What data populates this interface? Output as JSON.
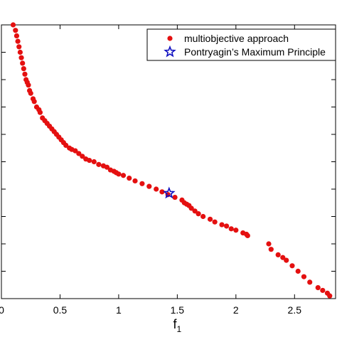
{
  "chart_data": {
    "type": "scatter",
    "title": "",
    "xlabel": "f",
    "xlabel_subscript": "1",
    "ylabel": "",
    "xlim": [
      0,
      2.85
    ],
    "ylim": [
      0,
      1.0
    ],
    "xticks": [
      0,
      0.5,
      1,
      1.5,
      2,
      2.5
    ],
    "xtick_labels": [
      "0",
      "0.5",
      "1",
      "1.5",
      "2",
      "2.5"
    ],
    "yticks": [
      0,
      0.1,
      0.2,
      0.3,
      0.4,
      0.5,
      0.6,
      0.7,
      0.8,
      0.9,
      1.0
    ],
    "ytick_labels": [],
    "grid": false,
    "legend_position": "top-right",
    "colors": {
      "series1": "#e41010",
      "series2": "#1010c0"
    },
    "series": [
      {
        "name": "multiobjective approach",
        "marker": "circle",
        "x": [
          0.1,
          0.12,
          0.13,
          0.14,
          0.15,
          0.16,
          0.17,
          0.18,
          0.19,
          0.2,
          0.21,
          0.22,
          0.23,
          0.24,
          0.25,
          0.27,
          0.28,
          0.3,
          0.32,
          0.33,
          0.35,
          0.37,
          0.39,
          0.41,
          0.43,
          0.45,
          0.47,
          0.49,
          0.51,
          0.53,
          0.55,
          0.58,
          0.6,
          0.63,
          0.66,
          0.69,
          0.72,
          0.75,
          0.79,
          0.83,
          0.87,
          0.9,
          0.93,
          0.96,
          0.98,
          1.0,
          1.04,
          1.09,
          1.14,
          1.2,
          1.26,
          1.32,
          1.37,
          1.42,
          1.48,
          1.54,
          1.56,
          1.58,
          1.6,
          1.62,
          1.65,
          1.68,
          1.72,
          1.78,
          1.82,
          1.88,
          1.92,
          1.96,
          2.0,
          2.06,
          2.09,
          2.1,
          2.28,
          2.3,
          2.36,
          2.4,
          2.43,
          2.48,
          2.53,
          2.58,
          2.63,
          2.7,
          2.74,
          2.78,
          2.8
        ],
        "y": [
          1.0,
          0.98,
          0.96,
          0.94,
          0.92,
          0.9,
          0.88,
          0.86,
          0.84,
          0.82,
          0.8,
          0.79,
          0.78,
          0.76,
          0.75,
          0.73,
          0.72,
          0.7,
          0.69,
          0.68,
          0.66,
          0.65,
          0.64,
          0.63,
          0.62,
          0.61,
          0.6,
          0.59,
          0.58,
          0.57,
          0.56,
          0.55,
          0.545,
          0.54,
          0.53,
          0.52,
          0.51,
          0.505,
          0.5,
          0.49,
          0.485,
          0.48,
          0.47,
          0.465,
          0.46,
          0.455,
          0.45,
          0.44,
          0.43,
          0.42,
          0.41,
          0.4,
          0.39,
          0.38,
          0.37,
          0.36,
          0.35,
          0.345,
          0.34,
          0.33,
          0.32,
          0.31,
          0.3,
          0.29,
          0.28,
          0.27,
          0.265,
          0.255,
          0.25,
          0.24,
          0.235,
          0.23,
          0.2,
          0.18,
          0.16,
          0.15,
          0.14,
          0.12,
          0.1,
          0.08,
          0.06,
          0.04,
          0.03,
          0.02,
          0.01
        ]
      },
      {
        "name": "Pontryagin’s Maximum Principle",
        "marker": "star",
        "x": [
          1.43
        ],
        "y": [
          0.385
        ]
      }
    ]
  }
}
